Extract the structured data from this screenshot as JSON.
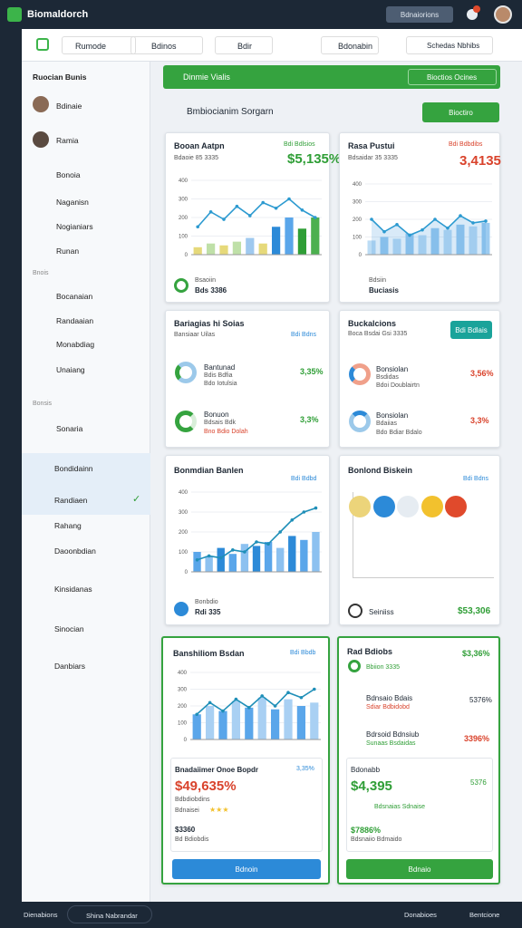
{
  "header": {
    "brand": "Biomaldorch",
    "button": "Bdnaiorions"
  },
  "toolbar": {
    "tabs": [
      "Rumode",
      "Bdinos",
      "Bdir",
      "Bdonabin",
      "Schedas Nbhibs"
    ]
  },
  "sidebar": {
    "title": "Ruocian Bunis",
    "items": [
      "Bdinaie",
      "Ramia",
      "Bonoia",
      "Naganisn",
      "Nogianiars",
      "Runan"
    ],
    "section1": "Bnois",
    "items2": [
      "Bocanaian",
      "Randaaian",
      "Monabdiag",
      "Unaiang"
    ],
    "section2": "Bonsis",
    "items3": [
      "Sonaria"
    ],
    "items4": [
      "Bondidainn",
      "Randiaen",
      "Rahang",
      "Daoonbdian",
      "Kinsidanas",
      "Sinocian",
      "Danbiars"
    ]
  },
  "banner": {
    "title": "Dinmie Vialis",
    "button": "Bioctios Ocines"
  },
  "section": {
    "title": "Bmbiocianim Sorgarn",
    "button": "Bioctiro"
  },
  "cards": [
    {
      "title": "Booan Aatpn",
      "tag": "Bdi Bdlsios",
      "subtitle": "Bdaoie 85 3335",
      "value": "$5,135%",
      "footer_label": "Bsaoiin",
      "footer_value": "Bds 3386",
      "chart": {
        "ylim": [
          0,
          400
        ],
        "yticks": [
          0,
          100,
          200,
          300,
          400
        ],
        "line": [
          150,
          230,
          190,
          260,
          210,
          280,
          250,
          300,
          240,
          200
        ],
        "bars": [
          40,
          60,
          50,
          70,
          90,
          60,
          150,
          200,
          140,
          200
        ],
        "bar_colors": [
          "#e6d97a",
          "#bfe0a8",
          "#e6d97a",
          "#bfe0a8",
          "#9fc9ef",
          "#e6d97a",
          "#2c8ad8",
          "#5aa6ea",
          "#2f9e36",
          "#4cb04f"
        ],
        "line_color": "#2c9ad0"
      }
    },
    {
      "title": "Rasa Pustui",
      "tag": "Bdi Bdbdibs",
      "subtitle": "Bdsaidar 35 3335",
      "value": "3,4135",
      "footer_label": "Bdsiin",
      "footer_value": "Buciasis",
      "chart": {
        "ylim": [
          0,
          400
        ],
        "yticks": [
          0,
          100,
          200,
          300,
          400
        ],
        "line": [
          200,
          130,
          170,
          110,
          140,
          200,
          150,
          220,
          180,
          190
        ],
        "bars": [
          80,
          100,
          90,
          120,
          110,
          150,
          140,
          170,
          160,
          180
        ],
        "bar_colors": [
          "#bcdcf5",
          "#9ccbf0"
        ],
        "line_color": "#2c9ad0",
        "area": true
      }
    },
    {
      "title": "Bariagias hi Soias",
      "subtitle": "Bansiaar Uilas",
      "tag": "Bdi Bdns",
      "rows": [
        {
          "name": "Bantunad",
          "sub": "Bdis Bdfia",
          "note": "Bdo Iotulsia",
          "value": "3,35%"
        },
        {
          "name": "Bonuon",
          "sub": "Bdsais Bdk",
          "note": "Bno Bdio Dolah",
          "value": "3,3%"
        }
      ]
    },
    {
      "title": "Buckalcions",
      "subtitle": "Boca Bsdai Gsi 3335",
      "tag": "Bdi Bdlais",
      "rows": [
        {
          "name": "Bonsiolan",
          "sub": "Bsdidas",
          "note": "Bdoi Doublairtn",
          "value": "3,56%"
        },
        {
          "name": "Bonsiolan",
          "sub": "Bdaiias",
          "note": "Bdo Bdiar Bdalo",
          "value": "3,3%"
        }
      ]
    },
    {
      "title": "Bonmdian Banlen",
      "tag": "Bdi Bdbd",
      "footer_label": "Bonbdio",
      "footer_value": "Rdi 335",
      "chart": {
        "ylim": [
          0,
          400
        ],
        "yticks": [
          0,
          100,
          200,
          300,
          400
        ],
        "line": [
          60,
          80,
          70,
          110,
          100,
          150,
          140,
          200,
          260,
          300,
          320
        ],
        "bars": [
          100,
          80,
          120,
          90,
          140,
          130,
          150,
          120,
          180,
          160,
          200
        ],
        "bar_colors": [
          "#5aa6ea",
          "#8cc1f0",
          "#2c8ad8"
        ],
        "line_color": "#1f8fb8"
      }
    },
    {
      "title": "Bonlond Biskein",
      "tag": "Bdi Bdns",
      "footer_label": "Seiniiss",
      "footer_value": "$53,306"
    },
    {
      "title": "Banshiliom Bsdan",
      "tag": "Bdi Bbdb",
      "sub_title": "Bnadaiimer Onoe Bopdr",
      "sub_tag": "3,35%",
      "sub_value": "$49,635%",
      "sub_note": "Bdbdiobdins",
      "rating": "Bdnaisei",
      "amount": "$3360",
      "amount_note": "Bd Bdiobdis",
      "button": "Bdnoin",
      "chart": {
        "ylim": [
          0,
          400
        ],
        "yticks": [
          0,
          100,
          200,
          300,
          400
        ],
        "line": [
          150,
          220,
          170,
          240,
          190,
          260,
          200,
          280,
          250,
          300
        ],
        "bars": [
          150,
          200,
          170,
          230,
          190,
          250,
          180,
          240,
          200,
          220
        ],
        "bar_colors": [
          "#5aa6ea",
          "#a9d0f3"
        ],
        "line_color": "#1f8fb8"
      }
    },
    {
      "title": "Rad Bdiobs",
      "value": "$3,36%",
      "note": "Bbiion 3335",
      "row1": "Bdnsaio Bdais",
      "row1_value": "5376%",
      "row1_note": "Sdiar Bdbidobd",
      "row2": "Bdrsoid Bdnsiub",
      "row2_value": "3396%",
      "row2_note": "Sunaas Bsdaidas",
      "sub_title": "Bdonabb",
      "sub_value": "$4,395",
      "sub_tag": "5376",
      "sub_note": "Bdsnaias Sdnaise",
      "amount": "$7886%",
      "amount_note": "Bdsnaiio Bdmaido",
      "button": "Bdnaio"
    }
  ],
  "footer": {
    "left": "Dienabions",
    "mid": "Shina Nabrandar",
    "right1": "Donabioes",
    "right2": "Bentcione"
  }
}
